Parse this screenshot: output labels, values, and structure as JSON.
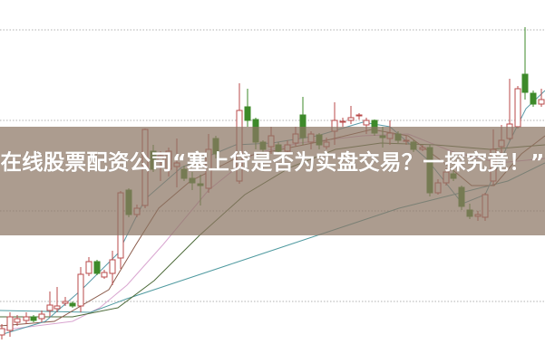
{
  "article": {
    "title": "在线股票配资公司“塞上贷是否为实盘交易？一探究竟！”"
  },
  "colors": {
    "up_candle": "#b84a4a",
    "down_candle": "#3d8a2a",
    "banner": "#8c7664",
    "grid": "#b0b0b0"
  }
}
